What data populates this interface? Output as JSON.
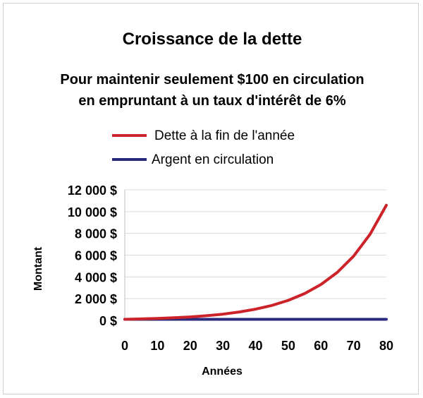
{
  "chart_data": {
    "type": "line",
    "title": "Croissance de la dette",
    "subtitle_lines": [
      "Pour maintenir seulement $100 en circulation",
      "en empruntant à un taux d'intérêt de 6%"
    ],
    "xlabel": "Années",
    "ylabel": "Montant",
    "xlim": [
      0,
      80
    ],
    "ylim": [
      0,
      12000
    ],
    "x_ticks": [
      "0",
      "10",
      "20",
      "30",
      "40",
      "50",
      "60",
      "70",
      "80"
    ],
    "x_tick_values": [
      0,
      10,
      20,
      30,
      40,
      50,
      60,
      70,
      80
    ],
    "y_ticks": [
      "0 $",
      "2 000 $",
      "4 000 $",
      "6 000 $",
      "8 000 $",
      "10 000 $",
      "12 000 $"
    ],
    "y_tick_values": [
      0,
      2000,
      4000,
      6000,
      8000,
      10000,
      12000
    ],
    "grid": true,
    "legend_position": "top",
    "series": [
      {
        "name": "Dette à la fin de l'année",
        "color": "#cc2229",
        "x": [
          0,
          5,
          10,
          15,
          20,
          25,
          30,
          35,
          40,
          45,
          50,
          55,
          60,
          65,
          70,
          75,
          80
        ],
        "values": [
          100,
          134,
          179,
          240,
          321,
          429,
          574,
          769,
          1029,
          1376,
          1842,
          2465,
          3299,
          4414,
          5907,
          7905,
          10579
        ]
      },
      {
        "name": "Argent en circulation",
        "color": "#2a2a7c",
        "x": [
          0,
          80
        ],
        "values": [
          100,
          100
        ]
      }
    ]
  }
}
